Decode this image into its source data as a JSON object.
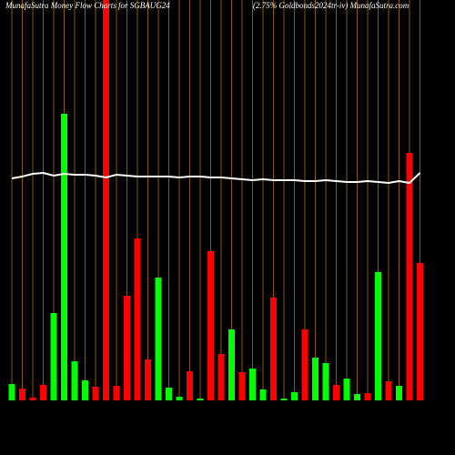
{
  "chart_data": {
    "type": "bar",
    "title": "MunafaSutra  Money Flow  Charts for SGBAUG24",
    "subtitle": "(2.75% Goldbonds2024tr-iv) MunafaSutra.com",
    "categories": [
      null,
      null,
      null,
      null,
      null,
      null,
      null,
      null,
      null,
      null,
      null,
      null,
      null,
      null,
      null,
      null,
      null,
      null,
      null,
      null,
      null,
      null,
      null,
      null,
      null,
      null,
      null,
      null,
      null,
      null,
      null,
      null,
      null,
      null,
      null,
      null,
      null,
      null,
      null,
      null
    ],
    "values": [
      18,
      13,
      3,
      17,
      96,
      315,
      43,
      22,
      15,
      440,
      16,
      115,
      178,
      45,
      135,
      14,
      4,
      32,
      2,
      164,
      51,
      78,
      31,
      35,
      12,
      113,
      2,
      9,
      78,
      47,
      41,
      17,
      24,
      7,
      8,
      141,
      21,
      16,
      272,
      151
    ],
    "colors": [
      "#00ff00",
      "#ff0000",
      "#ff0000",
      "#ff0000",
      "#00ff00",
      "#00ff00",
      "#00ff00",
      "#00ff00",
      "#ff0000",
      "#ff0000",
      "#ff0000",
      "#ff0000",
      "#ff0000",
      "#ff0000",
      "#00ff00",
      "#00ff00",
      "#00ff00",
      "#ff0000",
      "#00ff00",
      "#ff0000",
      "#ff0000",
      "#00ff00",
      "#ff0000",
      "#00ff00",
      "#00ff00",
      "#ff0000",
      "#00ff00",
      "#00ff00",
      "#ff0000",
      "#00ff00",
      "#00ff00",
      "#ff0000",
      "#00ff00",
      "#00ff00",
      "#ff0000",
      "#00ff00",
      "#ff0000",
      "#00ff00",
      "#ff0000",
      "#ff0000"
    ],
    "line": {
      "color": "#ffffff",
      "values": [
        244,
        246,
        249,
        250,
        247,
        249,
        248,
        248,
        247,
        245,
        248,
        247,
        246,
        246,
        246,
        246,
        245,
        246,
        246,
        245,
        245,
        244,
        243,
        242,
        243,
        242,
        242,
        242,
        241,
        241,
        242,
        241,
        240,
        240,
        241,
        240,
        239,
        241,
        239,
        250
      ]
    },
    "grid_color": "#8b5a00",
    "ylim": [
      0,
      440
    ]
  }
}
